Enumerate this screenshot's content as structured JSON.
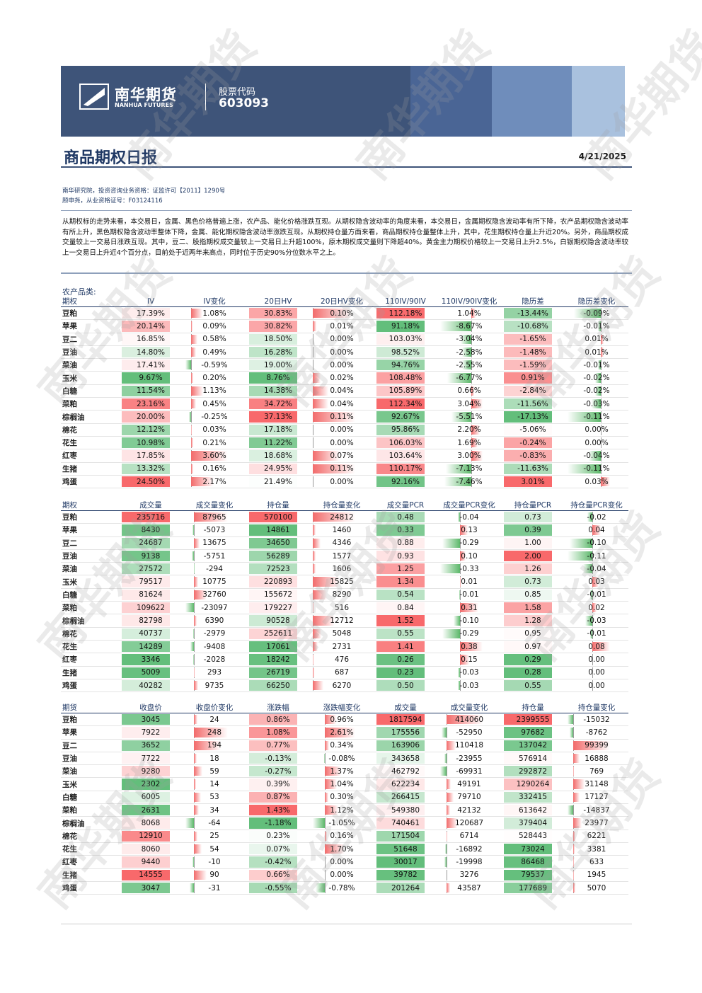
{
  "header": {
    "logo_cn": "南华期货",
    "logo_en": "NANHUA FUTURES",
    "stock_label": "股票代码",
    "stock_code": "603093"
  },
  "title": "商品期权日报",
  "date": "4/21/2025",
  "info": [
    "南华研究院，投资咨询业务资格：证监许可【2011】1290号",
    "顾申尧，从业资格证号：F03124116"
  ],
  "summary": "从期权标的走势来看，本交易日，金属、黑色价格普遍上涨，农产品、能化价格涨跌互现。从期权隐含波动率的角度来看，本交易日，金属期权隐含波动率有所下降，农产品期权隐含波动率有所上升，黑色期权隐含波动率整体下降，金属、能化期权隐含波动率涨跌互现。从期权持仓量方面来看，商品期权持仓量整体上升，其中，花生期权持仓量上升近20%。另外，商品期权成交量较上一交易日涨跌互现。其中，豆二、股指期权成交量较上一交易日上升超100%，原木期权成交量则下降超40%。黄金主力期权价格较上一交易日上升2.5%，白银期权隐含波动率较上一交易日上升近4个百分点，目前处于近两年来高点，同时位于历史90%分位数水平之上。",
  "section_label": "农产品类:",
  "watermark": "南华期货",
  "tables": [
    {
      "headers": [
        "期权",
        "IV",
        "IV变化",
        "20日HV",
        "20日HV变化",
        "110IV/90IV",
        "110IV/90IV变化",
        "隐历差",
        "隐历差变化"
      ],
      "rows": [
        [
          "豆粕",
          "17.39%",
          "1.08%",
          "30.83%",
          "0.10%",
          "112.18%",
          "1.04%",
          "-13.44%",
          "-0.09%"
        ],
        [
          "苹果",
          "20.14%",
          "0.09%",
          "30.82%",
          "0.01%",
          "91.18%",
          "-8.67%",
          "-10.68%",
          "-0.01%"
        ],
        [
          "豆二",
          "16.85%",
          "0.58%",
          "18.50%",
          "0.00%",
          "103.03%",
          "-3.04%",
          "-1.65%",
          "0.01%"
        ],
        [
          "豆油",
          "14.80%",
          "0.49%",
          "16.28%",
          "0.00%",
          "98.52%",
          "-2.58%",
          "-1.48%",
          "0.01%"
        ],
        [
          "菜油",
          "17.41%",
          "-0.59%",
          "19.00%",
          "0.00%",
          "94.76%",
          "-2.55%",
          "-1.59%",
          "-0.01%"
        ],
        [
          "玉米",
          "9.67%",
          "0.20%",
          "8.76%",
          "0.02%",
          "108.48%",
          "-6.77%",
          "0.91%",
          "-0.02%"
        ],
        [
          "白糖",
          "11.54%",
          "1.13%",
          "14.38%",
          "0.04%",
          "105.89%",
          "0.66%",
          "-2.84%",
          "-0.02%"
        ],
        [
          "菜粕",
          "23.16%",
          "0.45%",
          "34.72%",
          "0.04%",
          "112.34%",
          "3.04%",
          "-11.56%",
          "-0.03%"
        ],
        [
          "棕榈油",
          "20.00%",
          "-0.25%",
          "37.13%",
          "0.11%",
          "92.67%",
          "-5.51%",
          "-17.13%",
          "-0.11%"
        ],
        [
          "棉花",
          "12.12%",
          "0.03%",
          "17.18%",
          "0.00%",
          "95.86%",
          "2.20%",
          "-5.06%",
          "0.00%"
        ],
        [
          "花生",
          "10.98%",
          "0.21%",
          "11.22%",
          "0.00%",
          "106.03%",
          "1.69%",
          "-0.24%",
          "0.00%"
        ],
        [
          "红枣",
          "17.85%",
          "3.60%",
          "18.68%",
          "0.07%",
          "103.64%",
          "3.00%",
          "-0.83%",
          "-0.04%"
        ],
        [
          "生猪",
          "13.32%",
          "0.16%",
          "24.95%",
          "0.11%",
          "110.17%",
          "-7.13%",
          "-11.63%",
          "-0.11%"
        ],
        [
          "鸡蛋",
          "24.50%",
          "2.17%",
          "21.49%",
          "0.00%",
          "92.16%",
          "-7.46%",
          "3.01%",
          "0.03%"
        ]
      ]
    },
    {
      "headers": [
        "期权",
        "成交量",
        "成交量变化",
        "持仓量",
        "持仓量变化",
        "成交量PCR",
        "成交量PCR变化",
        "持仓量PCR",
        "持仓量PCR变化"
      ],
      "rows": [
        [
          "豆粕",
          "235716",
          "87965",
          "570100",
          "24812",
          "0.48",
          "-0.04",
          "0.73",
          "-0.02"
        ],
        [
          "苹果",
          "8430",
          "-5073",
          "14861",
          "1460",
          "0.33",
          "0.13",
          "0.39",
          "0.04"
        ],
        [
          "豆二",
          "24687",
          "13675",
          "34650",
          "4346",
          "0.88",
          "-0.29",
          "1.00",
          "-0.10"
        ],
        [
          "豆油",
          "9138",
          "-5751",
          "56289",
          "1577",
          "0.93",
          "0.10",
          "2.00",
          "-0.11"
        ],
        [
          "菜油",
          "27572",
          "-294",
          "72523",
          "1606",
          "1.25",
          "-0.33",
          "1.26",
          "-0.04"
        ],
        [
          "玉米",
          "79517",
          "10775",
          "220893",
          "15825",
          "1.34",
          "0.01",
          "0.73",
          "0.03"
        ],
        [
          "白糖",
          "81624",
          "32760",
          "155672",
          "8290",
          "0.54",
          "-0.01",
          "0.85",
          "-0.01"
        ],
        [
          "菜粕",
          "109622",
          "-23097",
          "179227",
          "516",
          "0.84",
          "0.31",
          "1.58",
          "0.02"
        ],
        [
          "棕榈油",
          "82798",
          "6390",
          "90528",
          "12712",
          "1.52",
          "-0.10",
          "1.28",
          "-0.03"
        ],
        [
          "棉花",
          "40737",
          "-2979",
          "252611",
          "5048",
          "0.55",
          "-0.29",
          "0.95",
          "-0.01"
        ],
        [
          "花生",
          "14289",
          "-9408",
          "17061",
          "2731",
          "1.41",
          "0.38",
          "0.97",
          "0.08"
        ],
        [
          "红枣",
          "3346",
          "-2028",
          "18242",
          "476",
          "0.26",
          "0.15",
          "0.29",
          "0.00"
        ],
        [
          "生猪",
          "5009",
          "293",
          "26719",
          "687",
          "0.23",
          "-0.03",
          "0.28",
          "0.00"
        ],
        [
          "鸡蛋",
          "40282",
          "9735",
          "66250",
          "6270",
          "0.50",
          "-0.03",
          "0.55",
          "0.00"
        ]
      ]
    },
    {
      "headers": [
        "期货",
        "收盘价",
        "收盘价变化",
        "涨跌幅",
        "涨跌幅变化",
        "成交量",
        "成交量变化",
        "持仓量",
        "持仓量变化"
      ],
      "rows": [
        [
          "豆粕",
          "3045",
          "24",
          "0.86%",
          "0.96%",
          "1817594",
          "414060",
          "2399555",
          "-15032"
        ],
        [
          "苹果",
          "7922",
          "248",
          "1.08%",
          "2.61%",
          "175556",
          "-52950",
          "97682",
          "-8762"
        ],
        [
          "豆二",
          "3652",
          "194",
          "0.77%",
          "0.34%",
          "163906",
          "110418",
          "137042",
          "99399"
        ],
        [
          "豆油",
          "7722",
          "18",
          "-0.13%",
          "-0.08%",
          "343658",
          "-23955",
          "576914",
          "16888"
        ],
        [
          "菜油",
          "9280",
          "59",
          "-0.27%",
          "1.37%",
          "462792",
          "-69931",
          "292872",
          "769"
        ],
        [
          "玉米",
          "2302",
          "14",
          "0.39%",
          "1.04%",
          "622234",
          "49191",
          "1290264",
          "31148"
        ],
        [
          "白糖",
          "6005",
          "53",
          "0.87%",
          "0.30%",
          "266415",
          "79710",
          "332415",
          "17127"
        ],
        [
          "菜粕",
          "2631",
          "34",
          "1.43%",
          "1.12%",
          "549380",
          "42132",
          "613642",
          "-14837"
        ],
        [
          "棕榈油",
          "8068",
          "-64",
          "-1.18%",
          "-1.05%",
          "740461",
          "120687",
          "379404",
          "23977"
        ],
        [
          "棉花",
          "12910",
          "25",
          "0.23%",
          "0.16%",
          "171504",
          "6714",
          "528443",
          "6221"
        ],
        [
          "花生",
          "8060",
          "54",
          "0.07%",
          "1.70%",
          "51648",
          "-16892",
          "73024",
          "3381"
        ],
        [
          "红枣",
          "9440",
          "-10",
          "-0.42%",
          "0.00%",
          "30017",
          "-19998",
          "86468",
          "633"
        ],
        [
          "生猪",
          "14555",
          "90",
          "0.66%",
          "0.00%",
          "39782",
          "3276",
          "79537",
          "1945"
        ],
        [
          "鸡蛋",
          "3047",
          "-31",
          "-0.55%",
          "-0.78%",
          "201264",
          "43587",
          "177689",
          "5070"
        ]
      ]
    }
  ]
}
